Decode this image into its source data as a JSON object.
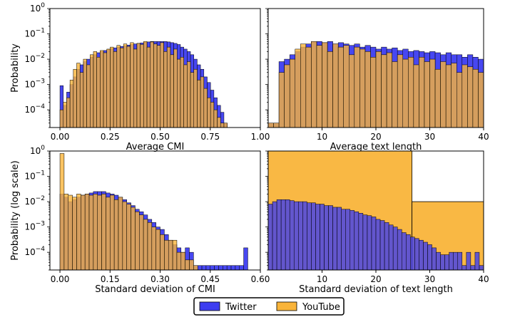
{
  "colors": {
    "twitter": "#3d3df0",
    "youtube": "#f9b43a",
    "overlap": "#c8853a",
    "edge": "#000000"
  },
  "legend": {
    "entries": [
      {
        "name": "Twitter",
        "color": "#3d3df0"
      },
      {
        "name": "YouTube",
        "color": "#f9b43a"
      }
    ],
    "placement": "bottom-center"
  },
  "chart_data": [
    {
      "type": "bar",
      "xlabel": "Average CMI",
      "ylabel": "Probability",
      "yscale": "log",
      "xlim": [
        -0.05,
        1.0
      ],
      "ylim": [
        2e-05,
        1
      ],
      "xticks": [
        "0.00",
        "0.25",
        "0.50",
        "0.75",
        "1.00"
      ],
      "xtick_values": [
        0,
        0.25,
        0.5,
        0.75,
        1.0
      ],
      "yticks": [
        "10^-4",
        "10^-3",
        "10^-2",
        "10^-1",
        "10^0"
      ],
      "bin_width": 0.0167,
      "series": [
        {
          "name": "Twitter",
          "start": 0.0,
          "values": [
            0.0009,
            0.00015,
            0.0005,
            0.001,
            0.002,
            0.004,
            0.006,
            0.008,
            0.01,
            0.012,
            0.015,
            0.018,
            0.02,
            0.022,
            0.024,
            0.026,
            0.028,
            0.03,
            0.032,
            0.034,
            0.036,
            0.038,
            0.04,
            0.042,
            0.044,
            0.046,
            0.048,
            0.05,
            0.05,
            0.05,
            0.05,
            0.05,
            0.048,
            0.045,
            0.042,
            0.038,
            0.03,
            0.025,
            0.02,
            0.015,
            0.01,
            0.006,
            0.004,
            0.002,
            0.0012,
            0.0006,
            0.0003,
            0.00015,
            8e-05,
            3e-05
          ]
        },
        {
          "name": "YouTube",
          "start": 0.0,
          "values": [
            0.0001,
            0.0002,
            0.0003,
            0.0015,
            0.004,
            0.007,
            0.003,
            0.01,
            0.006,
            0.015,
            0.02,
            0.012,
            0.022,
            0.018,
            0.025,
            0.03,
            0.02,
            0.035,
            0.028,
            0.04,
            0.032,
            0.045,
            0.025,
            0.042,
            0.038,
            0.05,
            0.03,
            0.048,
            0.04,
            0.035,
            0.045,
            0.02,
            0.03,
            0.015,
            0.025,
            0.01,
            0.012,
            0.006,
            0.008,
            0.003,
            0.004,
            0.0015,
            0.002,
            0.0007,
            0.0003,
            0.0002,
            0.0001,
            5e-05,
            3e-05,
            3e-05
          ]
        }
      ]
    },
    {
      "type": "bar",
      "xlabel": "Average text length",
      "ylabel": "",
      "yscale": "log",
      "xlim": [
        0,
        40
      ],
      "ylim": [
        2e-05,
        1
      ],
      "xticks": [
        "10",
        "20",
        "30",
        "40"
      ],
      "xtick_values": [
        10,
        20,
        30,
        40
      ],
      "yticks": [],
      "bin_width": 1.0,
      "series": [
        {
          "name": "Twitter",
          "start": 0.0,
          "values": [
            3e-05,
            3e-05,
            0.008,
            0.01,
            0.015,
            0.02,
            0.03,
            0.04,
            0.05,
            0.05,
            0.045,
            0.05,
            0.04,
            0.045,
            0.04,
            0.035,
            0.04,
            0.03,
            0.035,
            0.03,
            0.025,
            0.03,
            0.025,
            0.028,
            0.022,
            0.025,
            0.02,
            0.022,
            0.02,
            0.018,
            0.02,
            0.018,
            0.015,
            0.018,
            0.015,
            0.015,
            0.012,
            0.015,
            0.012,
            0.01
          ]
        },
        {
          "name": "YouTube",
          "start": 0.0,
          "values": [
            3e-05,
            3e-05,
            0.003,
            0.006,
            0.01,
            0.025,
            0.04,
            0.03,
            0.05,
            0.035,
            0.045,
            0.02,
            0.04,
            0.03,
            0.035,
            0.015,
            0.03,
            0.025,
            0.02,
            0.012,
            0.02,
            0.015,
            0.018,
            0.008,
            0.015,
            0.01,
            0.012,
            0.006,
            0.012,
            0.008,
            0.01,
            0.004,
            0.008,
            0.006,
            0.007,
            0.003,
            0.006,
            0.005,
            0.004,
            0.003
          ]
        }
      ]
    },
    {
      "type": "bar",
      "xlabel": "Standard deviation of CMI",
      "ylabel": "Probability (log scale)",
      "yscale": "log",
      "xlim": [
        -0.03,
        0.6
      ],
      "ylim": [
        2e-05,
        1
      ],
      "xticks": [
        "0.00",
        "0.15",
        "0.30",
        "0.45",
        "0.60"
      ],
      "xtick_values": [
        0,
        0.15,
        0.3,
        0.45,
        0.6
      ],
      "yticks": [
        "10^-4",
        "10^-3",
        "10^-2",
        "10^-1",
        "10^0"
      ],
      "bin_width": 0.0125,
      "series": [
        {
          "name": "Twitter",
          "start": 0.0,
          "values": [
            0.02,
            0.015,
            0.01,
            0.012,
            0.015,
            0.018,
            0.02,
            0.022,
            0.025,
            0.025,
            0.025,
            0.022,
            0.02,
            0.018,
            0.015,
            0.012,
            0.009,
            0.007,
            0.005,
            0.004,
            0.003,
            0.002,
            0.0015,
            0.001,
            0.0008,
            0.0005,
            0.0003,
            0.0002,
            0.00015,
            0.0001,
            0.00015,
            0.0001,
            3e-05,
            3e-05,
            3e-05,
            3e-05,
            3e-05,
            3e-05,
            3e-05,
            3e-05,
            3e-05,
            3e-05,
            3e-05,
            3e-05,
            0.00015
          ]
        },
        {
          "name": "YouTube",
          "start": 0.0,
          "values": [
            0.8,
            0.02,
            0.018,
            0.015,
            0.02,
            0.018,
            0.02,
            0.018,
            0.02,
            0.018,
            0.02,
            0.015,
            0.018,
            0.012,
            0.015,
            0.01,
            0.008,
            0.006,
            0.004,
            0.003,
            0.002,
            0.0015,
            0.001,
            0.0008,
            0.0005,
            0.0003,
            0.0003,
            0.0003,
            0.0001,
            0.0001,
            5e-05,
            5e-05,
            3e-05
          ]
        }
      ]
    },
    {
      "type": "bar",
      "xlabel": "Standard deviation of text length",
      "ylabel": "",
      "yscale": "log",
      "xlim": [
        0,
        40
      ],
      "ylim": [
        2e-05,
        1
      ],
      "xticks": [
        "10",
        "20",
        "30",
        "40"
      ],
      "xtick_values": [
        10,
        20,
        30,
        40
      ],
      "yticks": [],
      "series": [
        {
          "name": "YouTube",
          "bins": [
            {
              "x0": 0,
              "x1": 26.7,
              "value": 1.0
            },
            {
              "x0": 26.7,
              "x1": 40,
              "value": 0.01
            }
          ]
        },
        {
          "name": "Twitter",
          "start": 0.0,
          "bin_width": 0.8,
          "values": [
            0.008,
            0.01,
            0.012,
            0.012,
            0.012,
            0.011,
            0.01,
            0.01,
            0.01,
            0.009,
            0.009,
            0.008,
            0.008,
            0.007,
            0.007,
            0.006,
            0.006,
            0.005,
            0.005,
            0.0045,
            0.004,
            0.0035,
            0.003,
            0.0028,
            0.0025,
            0.002,
            0.0018,
            0.0015,
            0.0012,
            0.001,
            0.0008,
            0.0006,
            0.0005,
            0.0004,
            0.00035,
            0.0003,
            0.00025,
            0.0002,
            0.00015,
            0.0001,
            8e-05,
            8e-05,
            0.0001,
            0.0001,
            0.0001,
            3e-05,
            0.0001,
            3e-05,
            0.0001,
            3e-05,
            0.0001,
            3e-05,
            0.0001,
            3e-05,
            0.0001
          ]
        }
      ]
    }
  ]
}
